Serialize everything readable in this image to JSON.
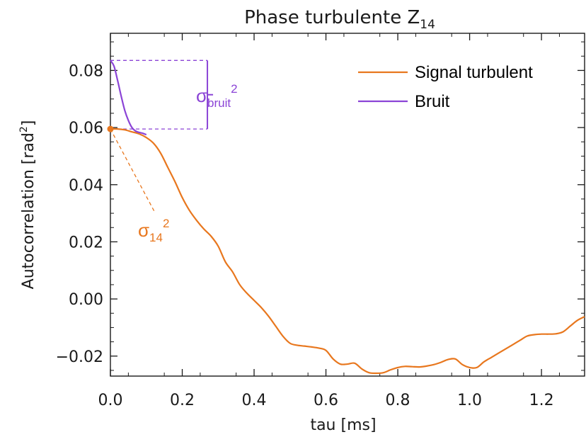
{
  "chart_data": {
    "type": "line",
    "title": "Phase turbulente Z",
    "title_subscript": "14",
    "xlabel": "tau [ms]",
    "ylabel": "Autocorrelation [rad",
    "ylabel_superscript": "2",
    "ylabel_suffix": "]",
    "xlim": [
      0.0,
      1.32
    ],
    "ylim": [
      -0.027,
      0.093
    ],
    "x_ticks": [
      0.0,
      0.2,
      0.4,
      0.6,
      0.8,
      1.0,
      1.2
    ],
    "x_tick_labels": [
      "0.0",
      "0.2",
      "0.4",
      "0.6",
      "0.8",
      "1.0",
      "1.2"
    ],
    "y_ticks": [
      -0.02,
      0.0,
      0.02,
      0.04,
      0.06,
      0.08
    ],
    "y_tick_labels": [
      "−0.02",
      "0.00",
      "0.02",
      "0.04",
      "0.06",
      "0.08"
    ],
    "legend_position": "top-right",
    "grid": false,
    "series": [
      {
        "name": "Signal turbulent",
        "color": "#E8771E",
        "x": [
          0.0,
          0.02,
          0.04,
          0.06,
          0.08,
          0.1,
          0.12,
          0.14,
          0.16,
          0.18,
          0.2,
          0.22,
          0.24,
          0.26,
          0.28,
          0.3,
          0.32,
          0.34,
          0.36,
          0.38,
          0.4,
          0.42,
          0.44,
          0.46,
          0.48,
          0.5,
          0.52,
          0.54,
          0.56,
          0.58,
          0.6,
          0.62,
          0.64,
          0.66,
          0.68,
          0.7,
          0.72,
          0.74,
          0.76,
          0.78,
          0.8,
          0.82,
          0.84,
          0.86,
          0.88,
          0.9,
          0.92,
          0.94,
          0.96,
          0.98,
          1.0,
          1.02,
          1.04,
          1.06,
          1.08,
          1.1,
          1.12,
          1.14,
          1.16,
          1.18,
          1.2,
          1.22,
          1.24,
          1.26,
          1.28,
          1.3,
          1.32
        ],
        "y": [
          0.0595,
          0.0595,
          0.0592,
          0.0585,
          0.0578,
          0.0565,
          0.0545,
          0.051,
          0.046,
          0.041,
          0.0355,
          0.031,
          0.0275,
          0.0245,
          0.022,
          0.0185,
          0.013,
          0.0095,
          0.005,
          0.002,
          -0.0005,
          -0.003,
          -0.006,
          -0.0095,
          -0.013,
          -0.0155,
          -0.0162,
          -0.0165,
          -0.0168,
          -0.0172,
          -0.018,
          -0.021,
          -0.0228,
          -0.0228,
          -0.0225,
          -0.0245,
          -0.0258,
          -0.026,
          -0.0258,
          -0.0248,
          -0.024,
          -0.0236,
          -0.0237,
          -0.0238,
          -0.0235,
          -0.023,
          -0.0222,
          -0.0212,
          -0.021,
          -0.023,
          -0.024,
          -0.024,
          -0.022,
          -0.0205,
          -0.019,
          -0.0175,
          -0.016,
          -0.0145,
          -0.013,
          -0.0125,
          -0.0123,
          -0.0123,
          -0.0122,
          -0.0115,
          -0.0095,
          -0.0075,
          -0.0062
        ]
      },
      {
        "name": "Bruit",
        "color": "#8B44D6",
        "x": [
          0.0,
          0.01,
          0.02,
          0.03,
          0.04,
          0.05,
          0.06,
          0.07,
          0.08,
          0.09,
          0.1
        ],
        "y": [
          0.0835,
          0.0815,
          0.0765,
          0.071,
          0.066,
          0.0625,
          0.06,
          0.0588,
          0.0583,
          0.058,
          0.0575
        ]
      }
    ],
    "annotations": {
      "bruit": {
        "label": "σ",
        "subscript": "bruit",
        "superscript": "2",
        "color": "#8B44D6",
        "y_top": 0.0835,
        "y_bottom": 0.0595,
        "bracket_x": 0.27
      },
      "sigma14": {
        "label": "σ",
        "subscript": "14",
        "superscript": "2",
        "color": "#E8771E",
        "point": [
          0.0,
          0.0595
        ],
        "dash_end": [
          0.125,
          0.03
        ]
      }
    }
  }
}
